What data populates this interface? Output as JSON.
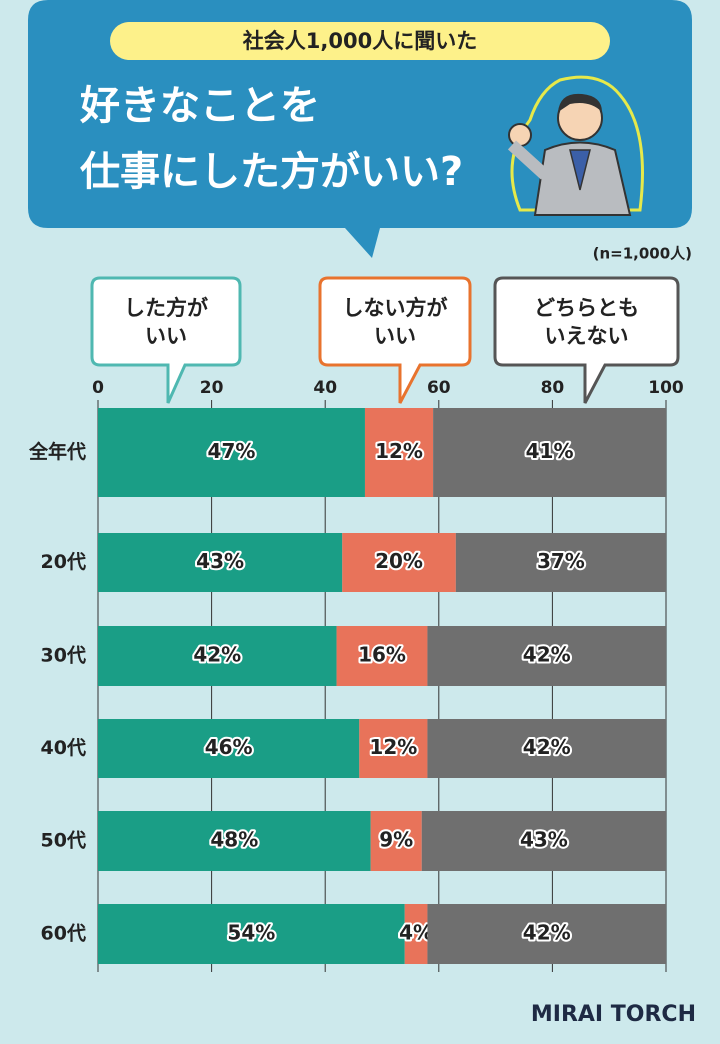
{
  "chart_data": {
    "type": "stacked-bar",
    "subtitle": "社会人1,000人に聞いた",
    "title": [
      "好きなことを",
      "仕事にした方がいい?"
    ],
    "note": "(n=1,000人)",
    "categories": [
      "全年代",
      "20代",
      "30代",
      "40代",
      "50代",
      "60代"
    ],
    "series": [
      {
        "name": "した方が\nいい",
        "color": "#1a9e86",
        "values": [
          47,
          43,
          42,
          46,
          48,
          54
        ],
        "value_labels": [
          "47%",
          "43%",
          "42%",
          "46%",
          "48%",
          "54%"
        ]
      },
      {
        "name": "しない方が\nいい",
        "color": "#e8735a",
        "values": [
          12,
          20,
          16,
          12,
          9,
          4
        ],
        "value_labels": [
          "12%",
          "20%",
          "16%",
          "12%",
          "9%",
          "4%"
        ]
      },
      {
        "name": "どちらとも\nいえない",
        "color": "#6f6f6f",
        "values": [
          41,
          37,
          42,
          42,
          43,
          42
        ],
        "value_labels": [
          "41%",
          "37%",
          "42%",
          "42%",
          "43%",
          "42%"
        ]
      }
    ],
    "xlim": [
      0,
      100
    ],
    "xticks": [
      0,
      20,
      40,
      60,
      80,
      100
    ],
    "grid": true,
    "logo": "MIRAI TORCH"
  }
}
